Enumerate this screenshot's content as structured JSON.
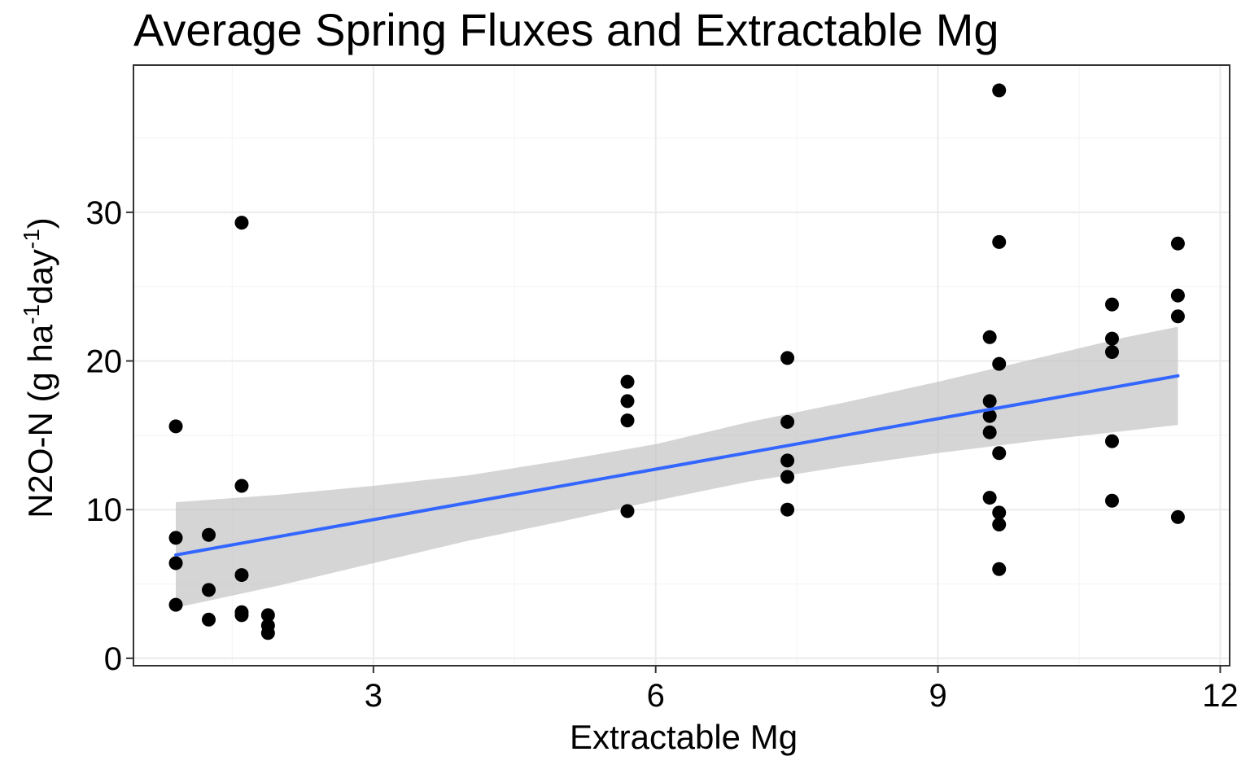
{
  "chart_data": {
    "type": "scatter",
    "title": "Average Spring Fluxes and Extractable Mg",
    "xlabel": "Extractable Mg",
    "ylabel_parts": [
      "N2O-N (g ha",
      "-1",
      "day",
      "-1",
      ")"
    ],
    "xlim": [
      0.45,
      12.1
    ],
    "ylim": [
      -0.5,
      39.9
    ],
    "x_ticks": [
      3,
      6,
      9,
      12
    ],
    "y_ticks": [
      0,
      10,
      20,
      30
    ],
    "x_minor": [
      1.5,
      4.5,
      7.5,
      10.5
    ],
    "y_minor": [
      5,
      15,
      25,
      35
    ],
    "grid": true,
    "colors": {
      "points": "#000000",
      "trend_line": "#3366FF",
      "ribbon": "#bebebe",
      "grid_major": "#ebebeb",
      "grid_minor": "#f5f5f5"
    },
    "points": [
      {
        "x": 0.9,
        "y": 15.6
      },
      {
        "x": 0.9,
        "y": 8.1
      },
      {
        "x": 0.9,
        "y": 6.4
      },
      {
        "x": 0.9,
        "y": 3.6
      },
      {
        "x": 1.25,
        "y": 8.3
      },
      {
        "x": 1.25,
        "y": 4.6
      },
      {
        "x": 1.25,
        "y": 2.6
      },
      {
        "x": 1.6,
        "y": 29.3
      },
      {
        "x": 1.6,
        "y": 11.6
      },
      {
        "x": 1.6,
        "y": 5.6
      },
      {
        "x": 1.6,
        "y": 3.1
      },
      {
        "x": 1.6,
        "y": 2.9
      },
      {
        "x": 1.88,
        "y": 2.9
      },
      {
        "x": 1.88,
        "y": 2.2
      },
      {
        "x": 1.88,
        "y": 1.7
      },
      {
        "x": 5.7,
        "y": 18.6
      },
      {
        "x": 5.7,
        "y": 17.3
      },
      {
        "x": 5.7,
        "y": 16.0
      },
      {
        "x": 5.7,
        "y": 9.9
      },
      {
        "x": 7.4,
        "y": 20.2
      },
      {
        "x": 7.4,
        "y": 15.9
      },
      {
        "x": 7.4,
        "y": 13.3
      },
      {
        "x": 7.4,
        "y": 12.2
      },
      {
        "x": 7.4,
        "y": 10.0
      },
      {
        "x": 9.55,
        "y": 21.6
      },
      {
        "x": 9.55,
        "y": 17.3
      },
      {
        "x": 9.55,
        "y": 16.3
      },
      {
        "x": 9.55,
        "y": 15.2
      },
      {
        "x": 9.55,
        "y": 10.8
      },
      {
        "x": 9.65,
        "y": 38.2
      },
      {
        "x": 9.65,
        "y": 28.0
      },
      {
        "x": 9.65,
        "y": 19.8
      },
      {
        "x": 9.65,
        "y": 13.8
      },
      {
        "x": 9.65,
        "y": 9.8
      },
      {
        "x": 9.65,
        "y": 9.0
      },
      {
        "x": 9.65,
        "y": 6.0
      },
      {
        "x": 10.85,
        "y": 23.8
      },
      {
        "x": 10.85,
        "y": 21.5
      },
      {
        "x": 10.85,
        "y": 20.6
      },
      {
        "x": 10.85,
        "y": 14.6
      },
      {
        "x": 10.85,
        "y": 10.6
      },
      {
        "x": 11.55,
        "y": 27.9
      },
      {
        "x": 11.55,
        "y": 24.4
      },
      {
        "x": 11.55,
        "y": 23.0
      },
      {
        "x": 11.55,
        "y": 9.5
      }
    ],
    "trend": {
      "x": [
        0.9,
        11.55
      ],
      "y": [
        6.95,
        19.0
      ]
    },
    "ribbon": {
      "x": [
        0.9,
        2.0,
        3.0,
        4.0,
        5.0,
        6.0,
        7.0,
        8.0,
        9.0,
        10.0,
        11.0,
        11.55
      ],
      "upper": [
        10.5,
        11.0,
        11.6,
        12.3,
        13.3,
        14.4,
        15.9,
        17.2,
        18.6,
        20.1,
        21.6,
        22.3
      ],
      "lower": [
        3.4,
        4.9,
        6.4,
        7.9,
        9.2,
        10.6,
        11.9,
        12.9,
        13.8,
        14.6,
        15.3,
        15.7
      ]
    }
  }
}
